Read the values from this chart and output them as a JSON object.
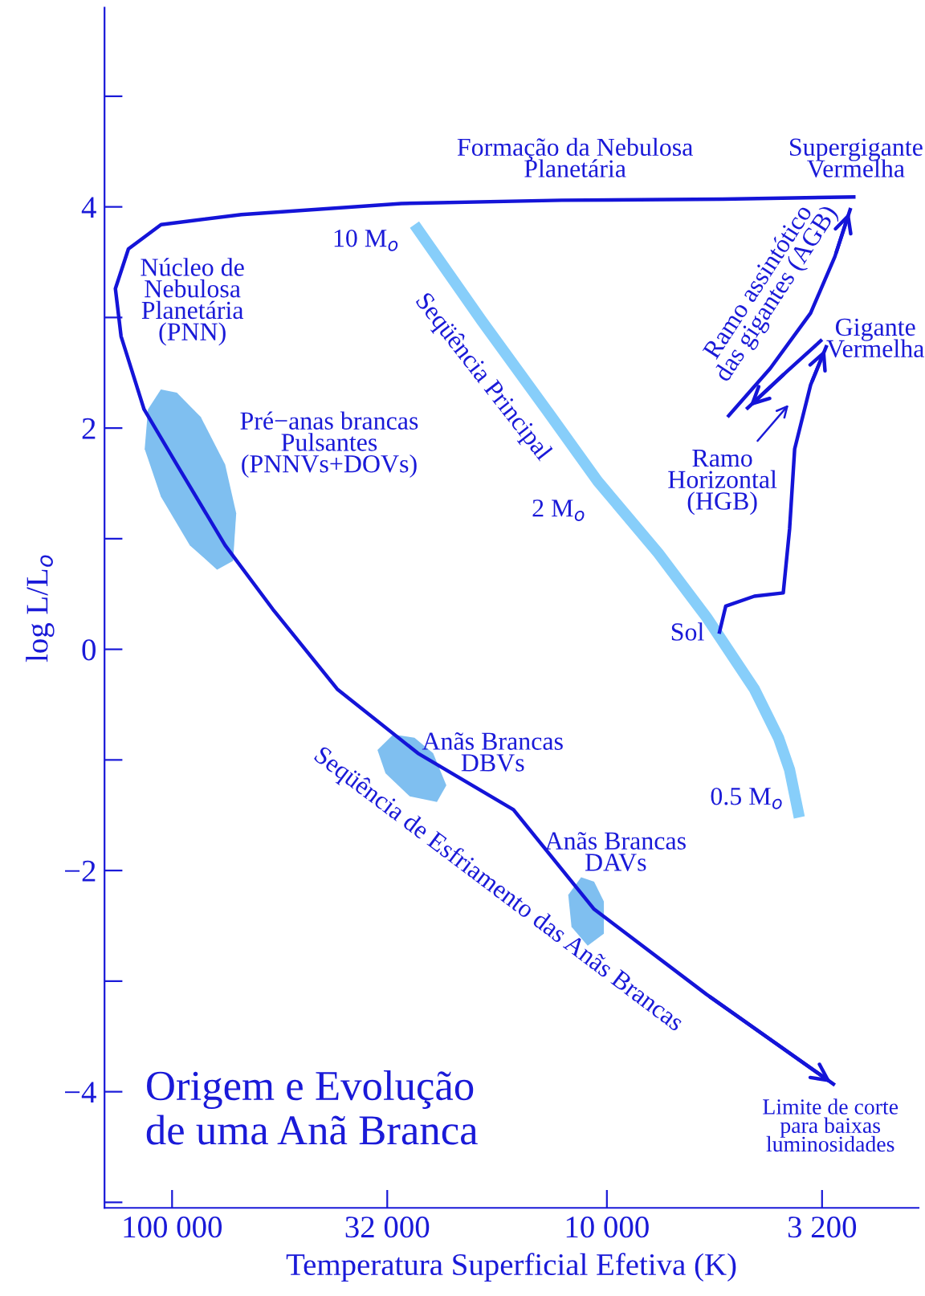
{
  "chart_data": {
    "type": "line",
    "title": "Origem e Evolução\nde uma Anã Branca",
    "xlabel": "Temperatura Superficial Efetiva (K)",
    "ylabel": "log L/L$_{o}$",
    "log": "x",
    "grid": false,
    "marker": "none",
    "line_style": "solid",
    "xlim": [
      143000,
      1920
    ],
    "xticks": [
      {
        "value": 100000,
        "label": "100 000"
      },
      {
        "value": 32000,
        "label": "32 000"
      },
      {
        "value": 10000,
        "label": "10 000"
      },
      {
        "value": 3200,
        "label": "3 200"
      }
    ],
    "ylim": [
      -5.05,
      5.8
    ],
    "yticks": [
      {
        "value": -5,
        "label": null
      },
      {
        "value": -4,
        "label": "−4"
      },
      {
        "value": -3,
        "label": null
      },
      {
        "value": -2,
        "label": "−2"
      },
      {
        "value": -1,
        "label": null
      },
      {
        "value": 0,
        "label": "0"
      },
      {
        "value": 1,
        "label": null
      },
      {
        "value": 2,
        "label": "2"
      },
      {
        "value": 3,
        "label": null
      },
      {
        "value": 4,
        "label": "4"
      },
      {
        "value": 5,
        "label": null
      }
    ],
    "series": [
      {
        "type": "area",
        "color": "#7fbff0",
        "x": [
          106100,
          113600,
          115600,
          106100,
          91000,
          78800,
          72400,
          71200,
          75500,
          85900,
          97500
        ],
        "values": [
          2.35,
          2.17,
          1.81,
          1.38,
          0.94,
          0.72,
          0.8,
          1.23,
          1.67,
          2.1,
          2.32
        ]
      },
      {
        "type": "area",
        "color": "#7fbff0",
        "x": [
          31000,
          33700,
          32300,
          28400,
          24600,
          23400,
          25100,
          27700
        ],
        "values": [
          -0.77,
          -0.91,
          -1.12,
          -1.33,
          -1.38,
          -1.23,
          -0.94,
          -0.8
        ]
      },
      {
        "type": "area",
        "color": "#7fbff0",
        "x": [
          11460,
          12270,
          12060,
          11070,
          10160,
          10160,
          10700
        ],
        "values": [
          -2.06,
          -2.22,
          -2.51,
          -2.68,
          -2.57,
          -2.28,
          -2.1
        ]
      },
      {
        "color": "#87cefa",
        "x": [
          27700,
          19400,
          13800,
          10500,
          7620,
          5900,
          4580,
          4030,
          3800,
          3610
        ],
        "values": [
          3.84,
          2.97,
          2.17,
          1.52,
          0.87,
          0.29,
          -0.36,
          -0.8,
          -1.09,
          -1.52
        ]
      },
      {
        "color": "#1414d8",
        "x": [
          2680,
          5420,
          12700,
          29700,
          69300,
          106000,
          126000,
          135000,
          131000,
          116000,
          97500,
          75500,
          58600,
          41700,
          27200,
          16400,
          10700,
          5900,
          2990
        ],
        "values": [
          4.09,
          4.07,
          4.06,
          4.03,
          3.93,
          3.84,
          3.62,
          3.26,
          2.83,
          2.17,
          1.67,
          0.94,
          0.36,
          -0.36,
          -0.94,
          -1.45,
          -2.35,
          -3.12,
          -3.94
        ]
      },
      {
        "color": "#1414d8",
        "x": [
          5520,
          5330,
          4580,
          3930,
          3800,
          3700,
          3400,
          3120
        ],
        "values": [
          0.14,
          0.39,
          0.48,
          0.51,
          1.09,
          1.81,
          2.39,
          2.75
        ]
      },
      {
        "color": "#1414d8",
        "x": [
          3200,
          3860,
          4780
        ],
        "values": [
          2.8,
          2.51,
          2.17
        ]
      },
      {
        "color": "#1414d8",
        "x": [
          5280,
          4210,
          3400,
          2990,
          2750
        ],
        "values": [
          2.1,
          2.54,
          3.04,
          3.55,
          3.99
        ]
      }
    ],
    "annotations": [
      "Formação da Nebulosa\nPlanetária",
      "Supergigante\nVermelha",
      "Núcleo de\nNebulosa\nPlanetária\n(PNN)",
      "Pré−anas brancas\nPulsantes\n(PNNVs+DOVs)",
      "Seqüência Principal",
      "10 M$_{o}$",
      "2 M$_{o}$",
      "Sol",
      "0.5 M$_{o}$",
      {
        "text": "Ramo assintótico\ndas gigantes (AGB)",
        "x": 3400,
        "y": 3.04
      },
      "Gigante\nVermelha",
      "Ramo\nHorizontal\n(HGB)",
      "Anãs Brancas\nDBVs",
      "Anãs Brancas\nDAVs",
      {
        "text": "Seqüência de Esfriamento das Anãs Brancas",
        "x": 16400,
        "y": -1.45
      },
      {
        "text": "Limite de corte\npara baixas\nluminosidades",
        "x": 2990,
        "y": -3.94
      }
    ]
  }
}
